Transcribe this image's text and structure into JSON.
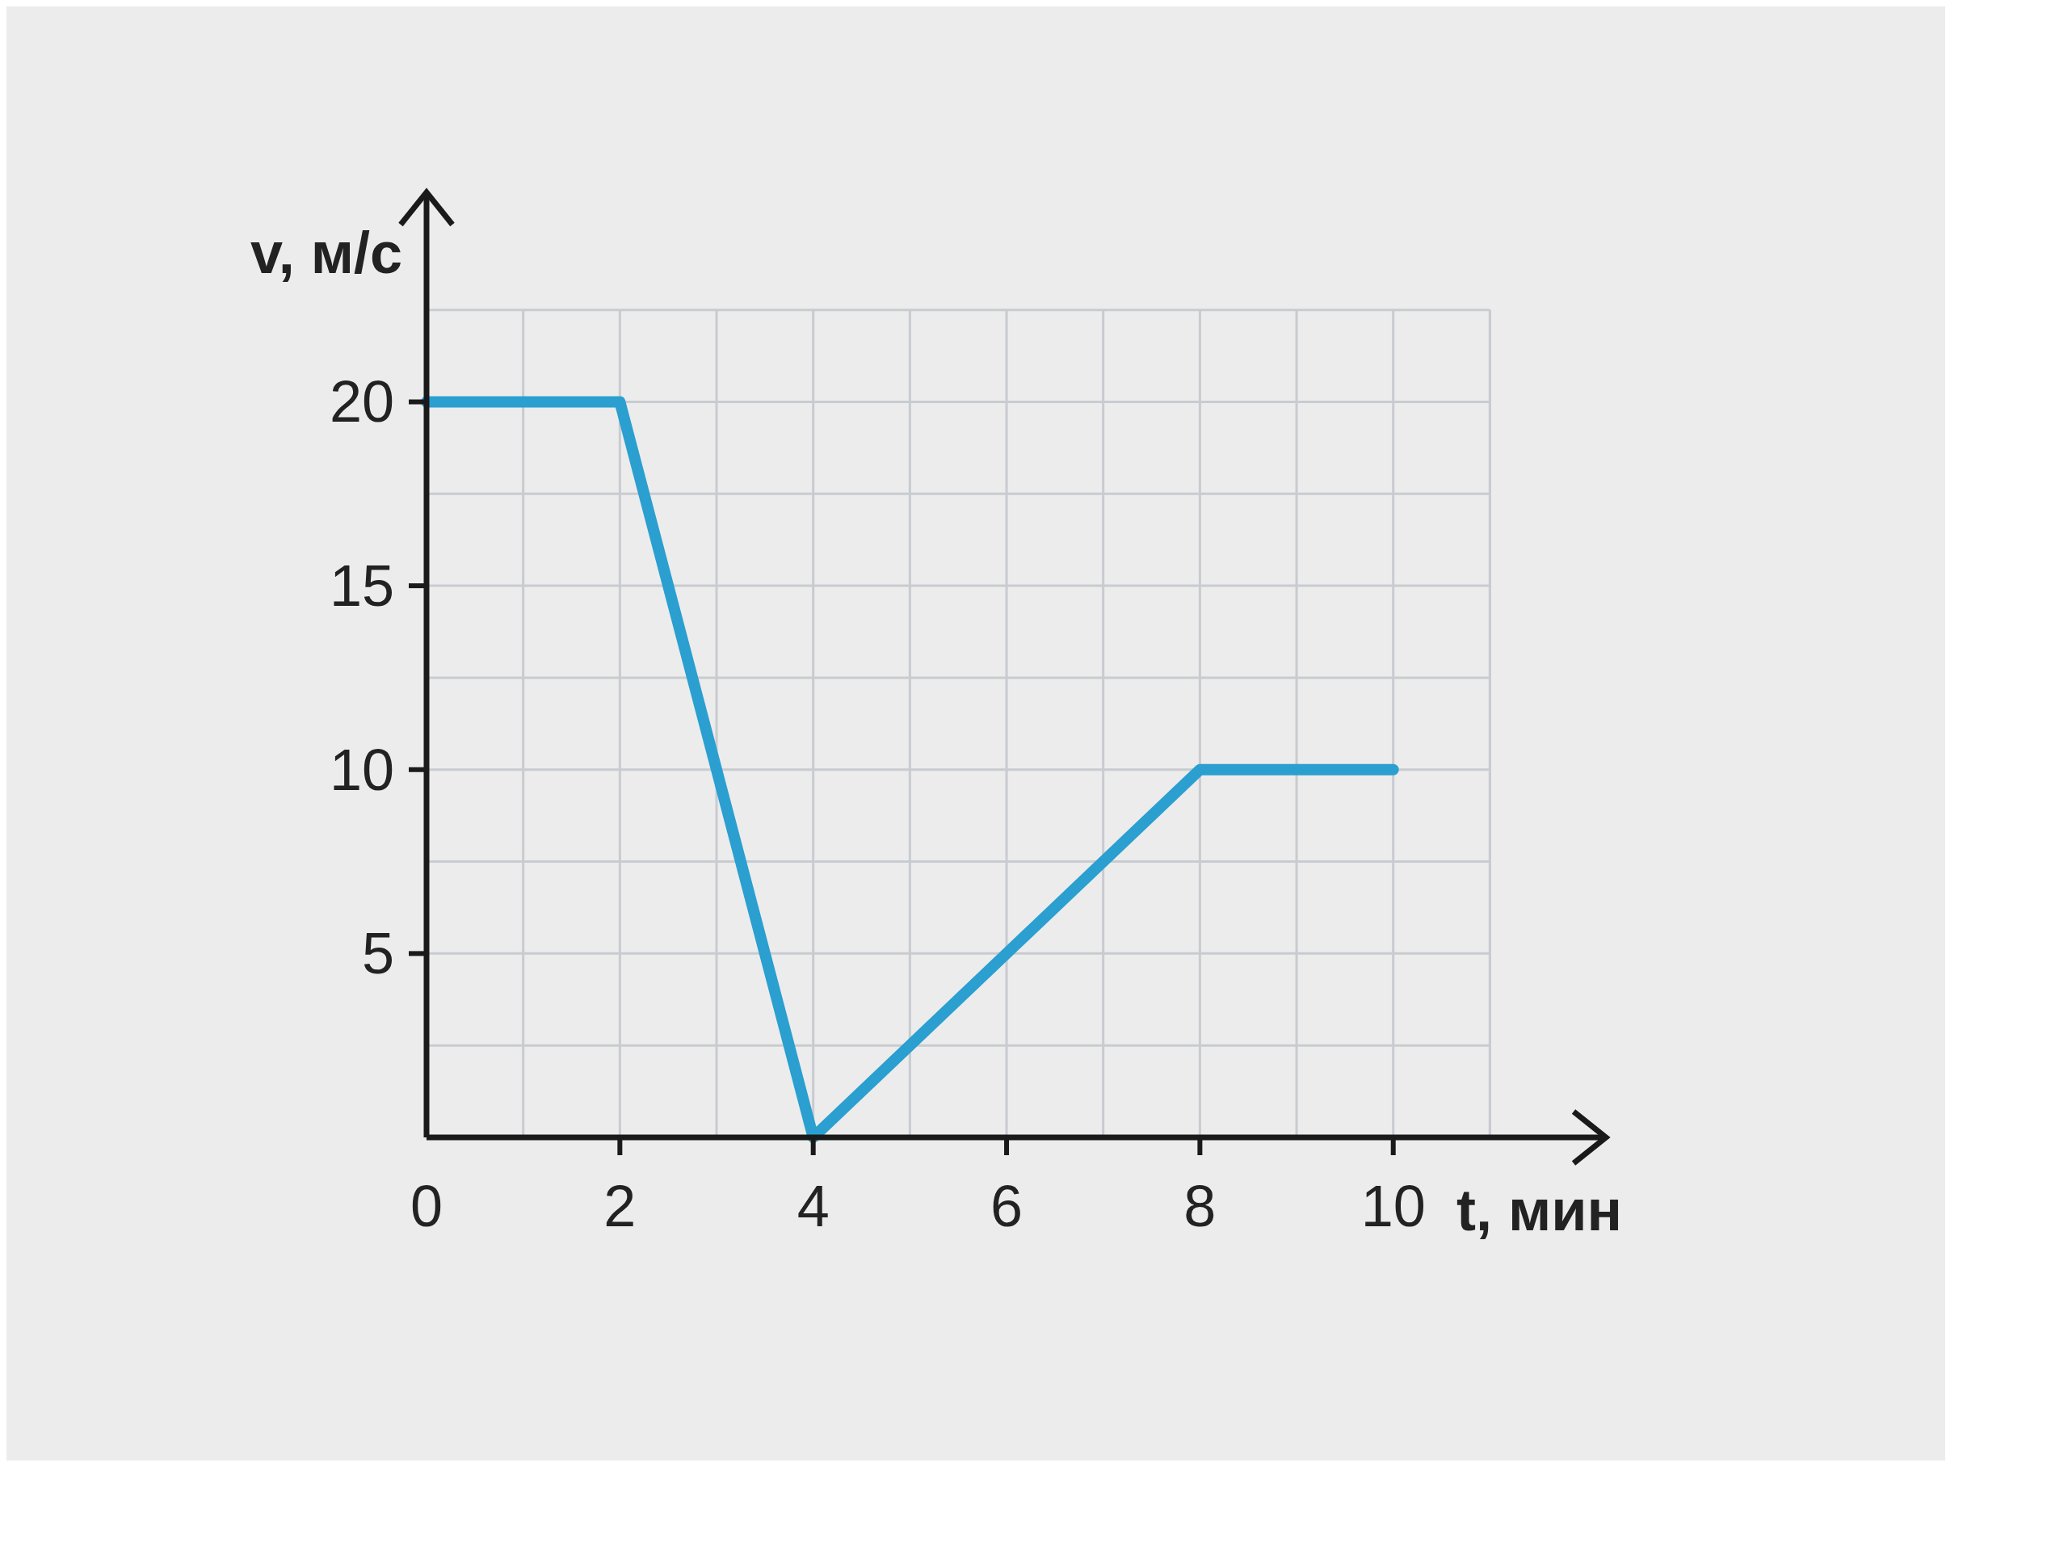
{
  "chart_data": {
    "type": "line",
    "xlabel": "t, мин",
    "ylabel": "v, м/с",
    "x": [
      0,
      2,
      4,
      8,
      10
    ],
    "series": [
      {
        "color": "#2a9fd0",
        "values": [
          20,
          20,
          0,
          10,
          10
        ]
      }
    ],
    "xlim": [
      0,
      12.2
    ],
    "ylim": [
      0,
      25.7
    ],
    "xticks": [
      0,
      {
        "value": 1,
        "label": null
      },
      2,
      {
        "value": 3,
        "label": null
      },
      4,
      {
        "value": 5,
        "label": null
      },
      6,
      {
        "value": 7,
        "label": null
      },
      8,
      {
        "value": 9,
        "label": null
      },
      10,
      {
        "value": 11,
        "label": null
      }
    ],
    "yticks": [
      {
        "value": 2.5,
        "label": null
      },
      5,
      {
        "value": 7.5,
        "label": null
      },
      10,
      {
        "value": 12.5,
        "label": null
      },
      15,
      {
        "value": 17.5,
        "label": null
      },
      20,
      {
        "value": 22.5,
        "label": null
      }
    ],
    "grid": true,
    "marker": "none",
    "line_style": "solid"
  }
}
